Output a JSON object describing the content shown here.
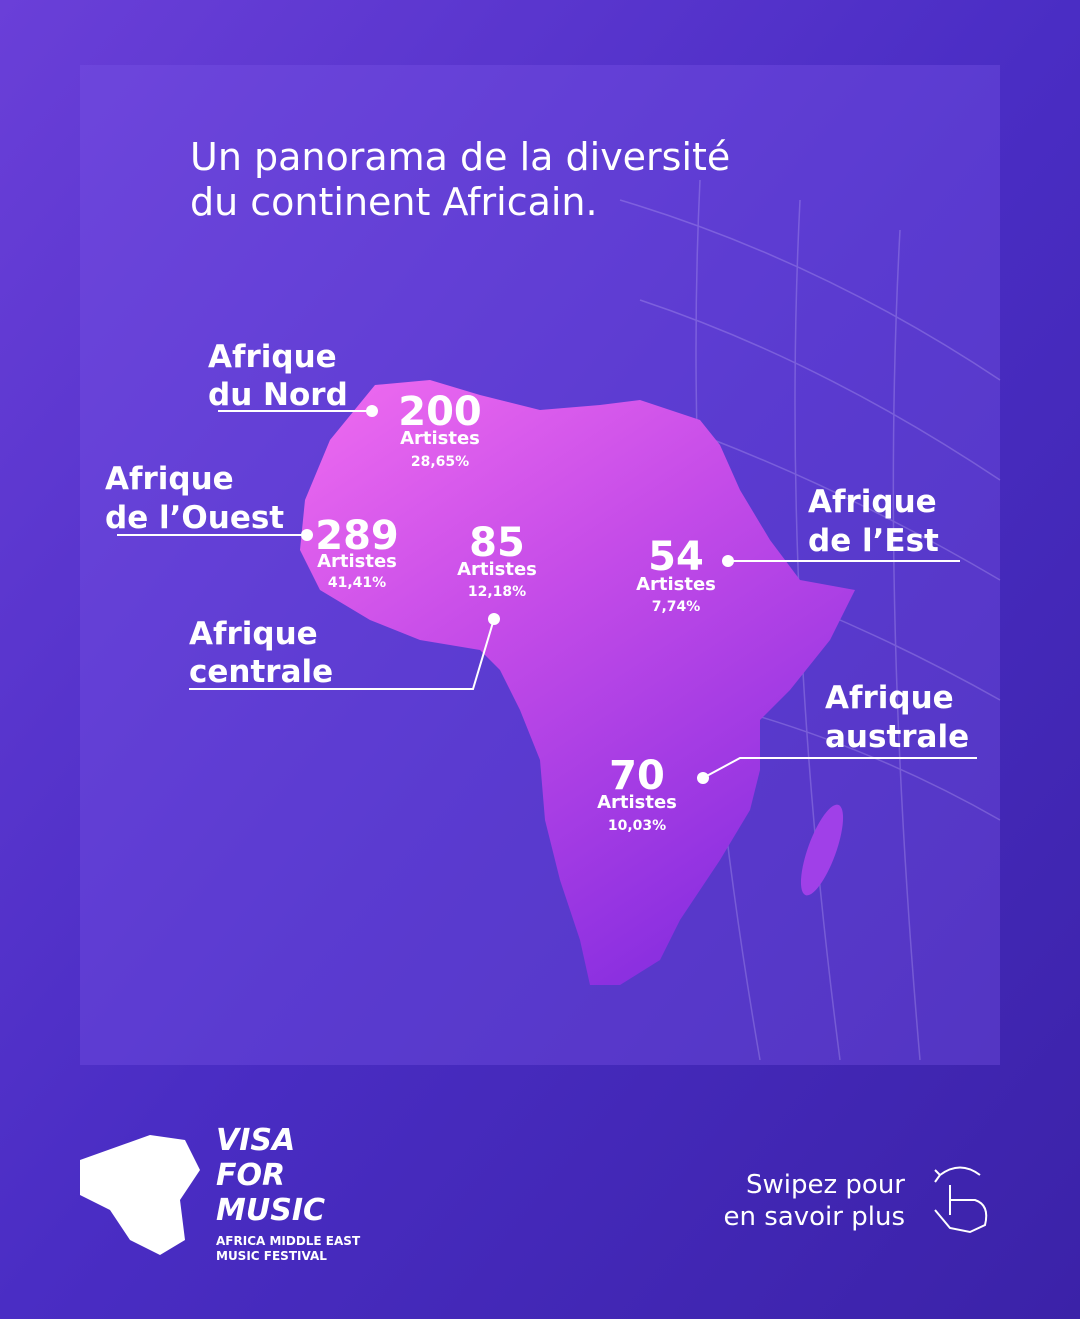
{
  "title": [
    "Un panorama de la diversité",
    "du continent Africain."
  ],
  "regions": [
    {
      "name": [
        "Afrique",
        "du Nord"
      ],
      "count": "200",
      "unit": "Artistes",
      "share": "28,65%"
    },
    {
      "name": [
        "Afrique",
        "de l’Ouest"
      ],
      "count": "289",
      "unit": "Artistes",
      "share": "41,41%"
    },
    {
      "name": [
        "Afrique",
        "centrale"
      ],
      "count": "85",
      "unit": "Artistes",
      "share": "12,18%"
    },
    {
      "name": [
        "Afrique",
        "de l’Est"
      ],
      "count": "54",
      "unit": "Artistes",
      "share": "7,74%"
    },
    {
      "name": [
        "Afrique",
        "australe"
      ],
      "count": "70",
      "unit": "Artistes",
      "share": "10,03%"
    }
  ],
  "logo": {
    "brand": [
      "VISA",
      "FOR",
      "MUSIC"
    ],
    "tagline": [
      "AFRICA MIDDLE EAST",
      "MUSIC FESTIVAL"
    ]
  },
  "swipe": [
    "Swipez pour",
    "en savoir plus"
  ]
}
